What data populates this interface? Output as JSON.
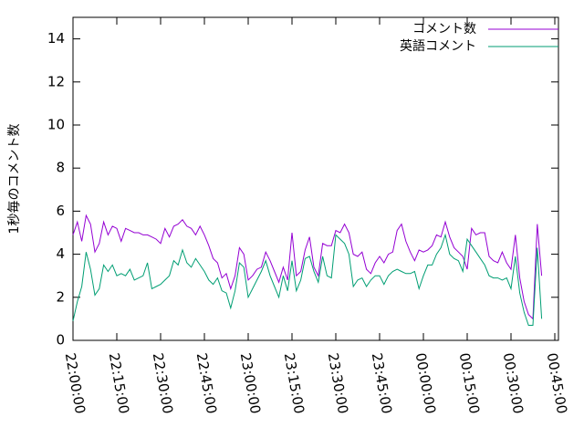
{
  "chart_data": {
    "type": "line",
    "ylabel": "1秒毎のコメント数",
    "x": [
      "22:00:00",
      "22:01:30",
      "22:03:00",
      "22:04:30",
      "22:06:00",
      "22:07:30",
      "22:09:00",
      "22:10:30",
      "22:12:00",
      "22:13:30",
      "22:15:00",
      "22:16:30",
      "22:18:00",
      "22:19:30",
      "22:21:00",
      "22:22:30",
      "22:24:00",
      "22:25:30",
      "22:27:00",
      "22:28:30",
      "22:30:00",
      "22:31:30",
      "22:33:00",
      "22:34:30",
      "22:36:00",
      "22:37:30",
      "22:39:00",
      "22:40:30",
      "22:42:00",
      "22:43:30",
      "22:45:00",
      "22:46:30",
      "22:48:00",
      "22:49:30",
      "22:51:00",
      "22:52:30",
      "22:54:00",
      "22:55:30",
      "22:57:00",
      "22:58:30",
      "23:00:00",
      "23:01:30",
      "23:03:00",
      "23:04:30",
      "23:06:00",
      "23:07:30",
      "23:09:00",
      "23:10:30",
      "23:12:00",
      "23:13:30",
      "23:15:00",
      "23:16:30",
      "23:18:00",
      "23:19:30",
      "23:21:00",
      "23:22:30",
      "23:24:00",
      "23:25:30",
      "23:27:00",
      "23:28:30",
      "23:30:00",
      "23:31:30",
      "23:33:00",
      "23:34:30",
      "23:36:00",
      "23:37:30",
      "23:39:00",
      "23:40:30",
      "23:42:00",
      "23:43:30",
      "23:45:00",
      "23:46:30",
      "23:48:00",
      "23:49:30",
      "23:51:00",
      "23:52:30",
      "23:54:00",
      "23:55:30",
      "23:57:00",
      "23:58:30",
      "00:00:00",
      "00:01:30",
      "00:03:00",
      "00:04:30",
      "00:06:00",
      "00:07:30",
      "00:09:00",
      "00:10:30",
      "00:12:00",
      "00:13:30",
      "00:15:00",
      "00:16:30",
      "00:18:00",
      "00:19:30",
      "00:21:00",
      "00:22:30",
      "00:24:00",
      "00:25:30",
      "00:27:00",
      "00:28:30",
      "00:30:00",
      "00:31:30",
      "00:33:00",
      "00:34:30",
      "00:36:00",
      "00:37:30",
      "00:39:00",
      "00:40:30"
    ],
    "series": [
      {
        "name": "コメント数",
        "color": "#9400d3",
        "values": [
          4.9,
          5.5,
          4.6,
          5.8,
          5.4,
          4.1,
          4.5,
          5.5,
          4.9,
          5.3,
          5.2,
          4.6,
          5.2,
          5.1,
          5.0,
          5.0,
          4.9,
          4.9,
          4.8,
          4.7,
          4.5,
          5.2,
          4.8,
          5.3,
          5.4,
          5.6,
          5.3,
          5.2,
          4.9,
          5.3,
          4.9,
          4.4,
          3.8,
          3.6,
          2.9,
          3.1,
          2.4,
          3.0,
          4.3,
          4.0,
          2.8,
          3.0,
          3.3,
          3.4,
          4.1,
          3.7,
          3.2,
          2.7,
          3.4,
          2.8,
          5.0,
          3.0,
          3.2,
          4.2,
          4.8,
          3.4,
          3.0,
          4.5,
          4.4,
          4.4,
          5.1,
          5.0,
          5.4,
          5.0,
          4.0,
          3.9,
          4.1,
          3.3,
          3.1,
          3.6,
          3.9,
          3.6,
          4.0,
          4.1,
          5.1,
          5.4,
          4.6,
          4.1,
          3.7,
          4.2,
          4.1,
          4.2,
          4.4,
          4.9,
          4.8,
          5.5,
          4.8,
          4.3,
          4.1,
          3.9,
          3.3,
          5.2,
          4.9,
          5.0,
          5.0,
          3.9,
          3.7,
          3.6,
          4.1,
          3.6,
          3.3,
          4.9,
          2.9,
          1.8,
          1.2,
          1.0,
          5.4,
          3.0
        ]
      },
      {
        "name": "英語コメント",
        "color": "#009e73",
        "values": [
          0.9,
          1.8,
          2.5,
          4.1,
          3.3,
          2.1,
          2.4,
          3.5,
          3.2,
          3.5,
          3.0,
          3.1,
          3.0,
          3.3,
          2.8,
          2.9,
          3.0,
          3.6,
          2.4,
          2.5,
          2.6,
          2.8,
          3.0,
          3.7,
          3.5,
          4.2,
          3.6,
          3.4,
          3.8,
          3.5,
          3.2,
          2.8,
          2.6,
          2.9,
          2.3,
          2.2,
          1.5,
          2.3,
          3.6,
          3.4,
          2.0,
          2.4,
          2.8,
          3.2,
          3.7,
          3.0,
          2.5,
          2.0,
          3.0,
          2.3,
          3.7,
          2.3,
          2.8,
          3.8,
          3.9,
          3.2,
          2.7,
          3.9,
          3.0,
          2.9,
          4.9,
          4.7,
          4.5,
          4.0,
          2.5,
          2.8,
          2.9,
          2.5,
          2.8,
          3.0,
          3.0,
          2.6,
          3.0,
          3.2,
          3.3,
          3.2,
          3.1,
          3.1,
          3.2,
          2.4,
          3.0,
          3.5,
          3.5,
          4.0,
          4.3,
          4.9,
          4.0,
          3.8,
          3.7,
          3.2,
          4.7,
          4.4,
          4.1,
          3.8,
          3.5,
          3.0,
          2.9,
          2.9,
          2.8,
          2.9,
          2.4,
          3.9,
          2.2,
          1.3,
          0.7,
          0.7,
          4.3,
          1.0
        ]
      }
    ],
    "xlim": [
      "22:00:00",
      "00:46:15"
    ],
    "xticks": [
      "22:00:00",
      "22:15:00",
      "22:30:00",
      "22:45:00",
      "23:00:00",
      "23:15:00",
      "23:30:00",
      "23:45:00",
      "00:00:00",
      "00:15:00",
      "00:30:00",
      "00:45:00"
    ],
    "ylim": [
      0,
      15
    ],
    "yticks": [
      0,
      2,
      4,
      6,
      8,
      10,
      12,
      14
    ],
    "legend": "top-right"
  }
}
